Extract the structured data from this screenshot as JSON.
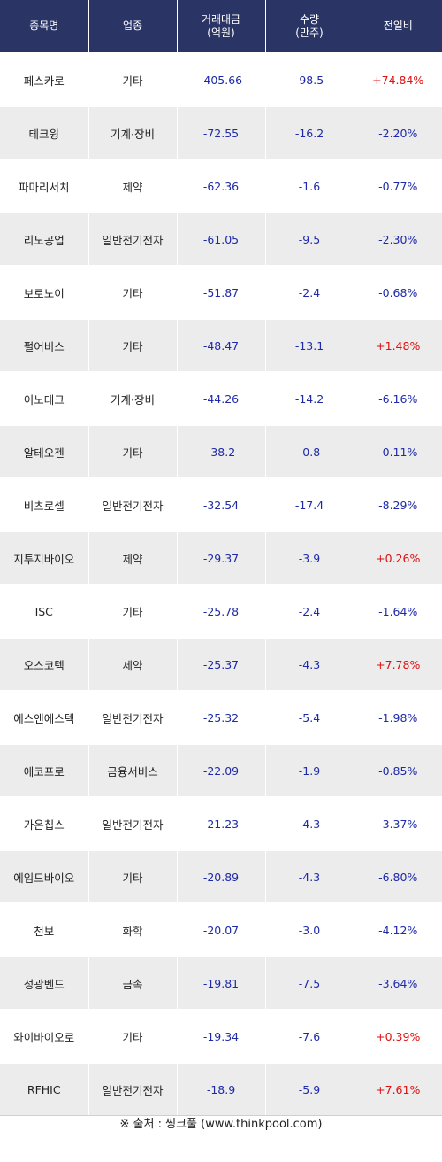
{
  "headers": {
    "name": "종목명",
    "sector": "업종",
    "amount": "거래대금\n(억원)",
    "volume": "수량\n(만주)",
    "change": "전일비"
  },
  "rows": [
    {
      "name": "페스카로",
      "sector": "기타",
      "amount": "-405.66",
      "volume": "-98.5",
      "change": "+74.84%"
    },
    {
      "name": "테크윙",
      "sector": "기계·장비",
      "amount": "-72.55",
      "volume": "-16.2",
      "change": "-2.20%"
    },
    {
      "name": "파마리서치",
      "sector": "제약",
      "amount": "-62.36",
      "volume": "-1.6",
      "change": "-0.77%"
    },
    {
      "name": "리노공업",
      "sector": "일반전기전자",
      "amount": "-61.05",
      "volume": "-9.5",
      "change": "-2.30%"
    },
    {
      "name": "보로노이",
      "sector": "기타",
      "amount": "-51.87",
      "volume": "-2.4",
      "change": "-0.68%"
    },
    {
      "name": "펄어비스",
      "sector": "기타",
      "amount": "-48.47",
      "volume": "-13.1",
      "change": "+1.48%"
    },
    {
      "name": "이노테크",
      "sector": "기계·장비",
      "amount": "-44.26",
      "volume": "-14.2",
      "change": "-6.16%"
    },
    {
      "name": "알테오젠",
      "sector": "기타",
      "amount": "-38.2",
      "volume": "-0.8",
      "change": "-0.11%"
    },
    {
      "name": "비츠로셀",
      "sector": "일반전기전자",
      "amount": "-32.54",
      "volume": "-17.4",
      "change": "-8.29%"
    },
    {
      "name": "지투지바이오",
      "sector": "제약",
      "amount": "-29.37",
      "volume": "-3.9",
      "change": "+0.26%"
    },
    {
      "name": "ISC",
      "sector": "기타",
      "amount": "-25.78",
      "volume": "-2.4",
      "change": "-1.64%"
    },
    {
      "name": "오스코텍",
      "sector": "제약",
      "amount": "-25.37",
      "volume": "-4.3",
      "change": "+7.78%"
    },
    {
      "name": "에스앤에스텍",
      "sector": "일반전기전자",
      "amount": "-25.32",
      "volume": "-5.4",
      "change": "-1.98%"
    },
    {
      "name": "에코프로",
      "sector": "금융서비스",
      "amount": "-22.09",
      "volume": "-1.9",
      "change": "-0.85%"
    },
    {
      "name": "가온칩스",
      "sector": "일반전기전자",
      "amount": "-21.23",
      "volume": "-4.3",
      "change": "-3.37%"
    },
    {
      "name": "에임드바이오",
      "sector": "기타",
      "amount": "-20.89",
      "volume": "-4.3",
      "change": "-6.80%"
    },
    {
      "name": "천보",
      "sector": "화학",
      "amount": "-20.07",
      "volume": "-3.0",
      "change": "-4.12%"
    },
    {
      "name": "성광벤드",
      "sector": "금속",
      "amount": "-19.81",
      "volume": "-7.5",
      "change": "-3.64%"
    },
    {
      "name": "와이바이오로",
      "sector": "기타",
      "amount": "-19.34",
      "volume": "-7.6",
      "change": "+0.39%"
    },
    {
      "name": "RFHIC",
      "sector": "일반전기전자",
      "amount": "-18.9",
      "volume": "-5.9",
      "change": "+7.61%"
    }
  ],
  "source": "※ 출처 : 씽크풀 (www.thinkpool.com)",
  "colors": {
    "header_bg": "#2b3565",
    "positive": "#dd1111",
    "negative": "#1e2aa8",
    "stripe": "#ececec"
  }
}
